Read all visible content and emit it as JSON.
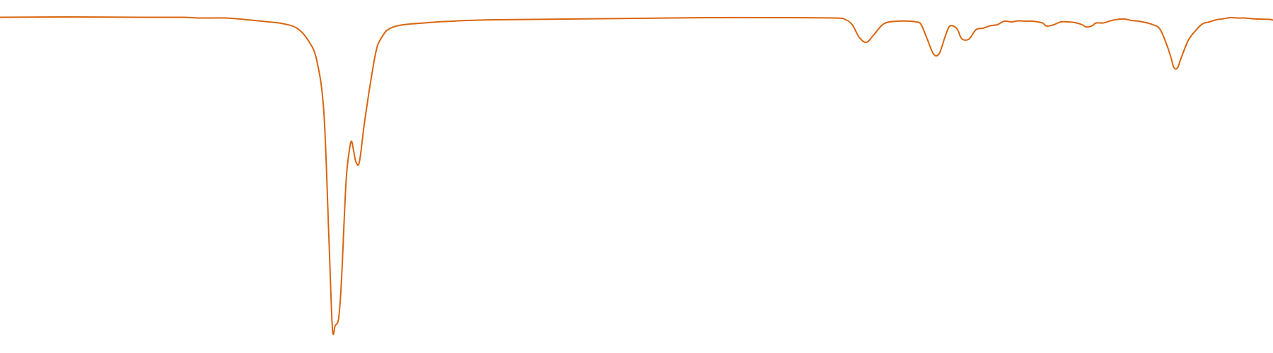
{
  "chart_data": {
    "type": "line",
    "title": "",
    "xlabel": "",
    "ylabel": "",
    "grid": false,
    "axes_visible": false,
    "xlim": [
      0,
      1800
    ],
    "ylim": [
      0,
      100
    ],
    "series": [
      {
        "color": "#d9650f",
        "x": [
          0,
          100,
          200,
          260,
          280,
          320,
          350,
          380,
          400,
          420,
          436,
          448,
          458,
          465,
          470,
          474,
          478,
          480,
          482,
          484,
          487,
          490,
          494,
          497,
          500,
          503,
          507,
          510,
          514,
          518,
          522,
          526,
          530,
          534,
          540,
          546,
          552,
          560,
          570,
          580,
          600,
          620,
          640,
          660,
          700,
          800,
          900,
          1000,
          1100,
          1180,
          1195,
          1205,
          1215,
          1225,
          1235,
          1250,
          1270,
          1285,
          1295,
          1302,
          1310,
          1320,
          1328,
          1336,
          1342,
          1348,
          1354,
          1360,
          1370,
          1380,
          1390,
          1400,
          1410,
          1420,
          1430,
          1440,
          1450,
          1460,
          1470,
          1475,
          1480,
          1490,
          1500,
          1510,
          1520,
          1530,
          1535,
          1540,
          1545,
          1550,
          1560,
          1570,
          1580,
          1590,
          1600,
          1610,
          1620,
          1630,
          1640,
          1650,
          1656,
          1660,
          1665,
          1670,
          1680,
          1690,
          1700,
          1710,
          1720,
          1730,
          1740,
          1750,
          1760,
          1770,
          1780,
          1795,
          1800
        ],
        "y": [
          95.1,
          95.2,
          95.1,
          95.1,
          94.9,
          94.9,
          94.4,
          93.8,
          93.3,
          92.0,
          88.5,
          82.8,
          68.0,
          33.0,
          7.0,
          7.8,
          8.9,
          12.0,
          17.5,
          25.3,
          39.2,
          50.5,
          57.5,
          60.0,
          57.3,
          54.3,
          53.3,
          56.5,
          63.2,
          68.9,
          74.3,
          79.2,
          83.8,
          87.2,
          89.5,
          91.2,
          92.0,
          92.6,
          93.0,
          93.2,
          93.5,
          93.8,
          94.0,
          94.2,
          94.4,
          94.6,
          94.8,
          95.0,
          95.0,
          94.9,
          94.5,
          93.0,
          89.4,
          88.0,
          90.0,
          93.3,
          94.0,
          94.0,
          93.8,
          93.2,
          89.5,
          84.7,
          84.8,
          89.4,
          92.4,
          92.6,
          91.6,
          89.0,
          88.9,
          91.6,
          92.0,
          92.7,
          93.0,
          94.0,
          93.8,
          94.1,
          94.0,
          94.0,
          93.7,
          93.4,
          92.6,
          93.0,
          93.8,
          93.8,
          93.6,
          93.0,
          92.4,
          92.4,
          92.8,
          93.5,
          93.5,
          94.1,
          94.5,
          94.6,
          94.2,
          94.0,
          93.6,
          93.0,
          91.8,
          87.2,
          83.5,
          80.8,
          80.8,
          83.5,
          88.5,
          91.2,
          93.2,
          93.8,
          94.4,
          94.7,
          95.0,
          94.9,
          94.9,
          94.7,
          94.6,
          94.5,
          94.3
        ]
      }
    ]
  }
}
